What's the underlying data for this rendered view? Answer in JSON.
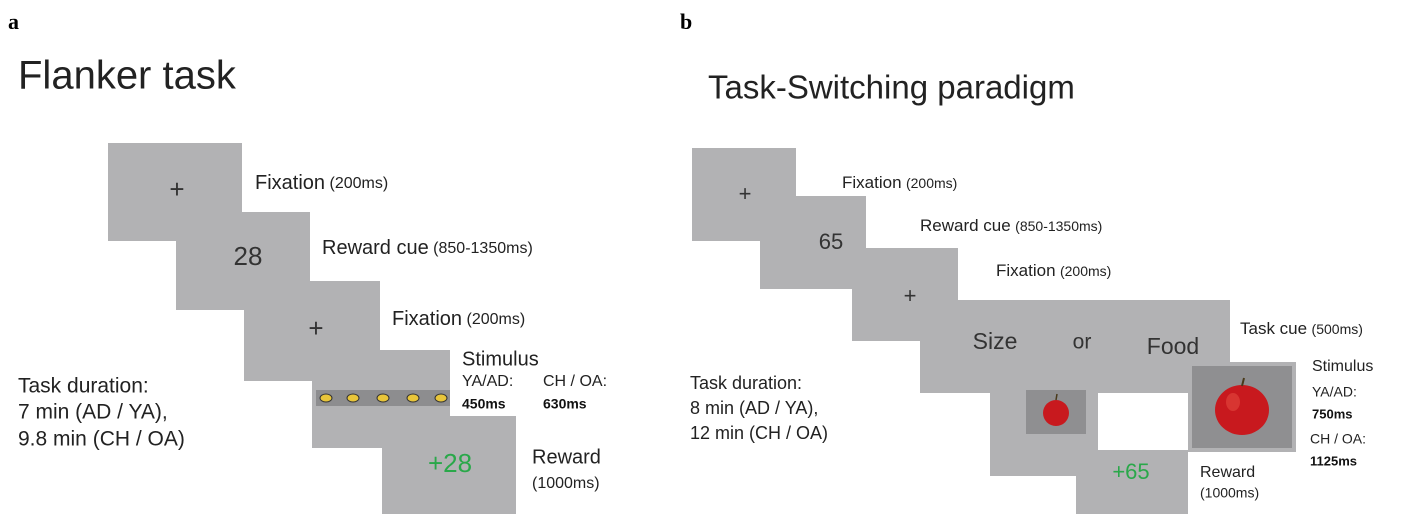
{
  "panels": [
    {
      "letter": "a",
      "title": "Flanker task",
      "steps": [
        {
          "display": "+",
          "label": "Fixation",
          "duration": "(200ms)"
        },
        {
          "display": "28",
          "label": "Reward cue",
          "duration": "(850-1350ms)"
        },
        {
          "display": "+",
          "label": "Fixation",
          "duration": "(200ms)"
        },
        {
          "label": "Stimulus",
          "groups": [
            {
              "group": "YA/AD:",
              "time": "450ms"
            },
            {
              "group": "CH / OA:",
              "time": "630ms"
            }
          ]
        },
        {
          "display": "+28",
          "label": "Reward",
          "duration": "(1000ms)"
        }
      ],
      "task_duration": [
        "Task duration:",
        "7 min (AD / YA),",
        "9.8 min (CH / OA)"
      ]
    },
    {
      "letter": "b",
      "title": "Task-Switching paradigm",
      "steps": [
        {
          "display": "+",
          "label": "Fixation",
          "duration": "(200ms)"
        },
        {
          "display": "65",
          "label": "Reward cue",
          "duration": "(850-1350ms)"
        },
        {
          "display": "+",
          "label": "Fixation",
          "duration": "(200ms)"
        },
        {
          "options": [
            "Size",
            "or",
            "Food"
          ],
          "label": "Task cue",
          "duration": "(500ms)"
        },
        {
          "label": "Stimulus",
          "groups": [
            {
              "group": "YA/AD:",
              "time": "750ms"
            },
            {
              "group": "CH / OA:",
              "time": "1125ms"
            }
          ]
        },
        {
          "display": "+65",
          "label": "Reward",
          "duration": "(1000ms)"
        }
      ],
      "task_duration": [
        "Task duration:",
        "8 min (AD / YA),",
        "12 min (CH / OA)"
      ]
    }
  ]
}
